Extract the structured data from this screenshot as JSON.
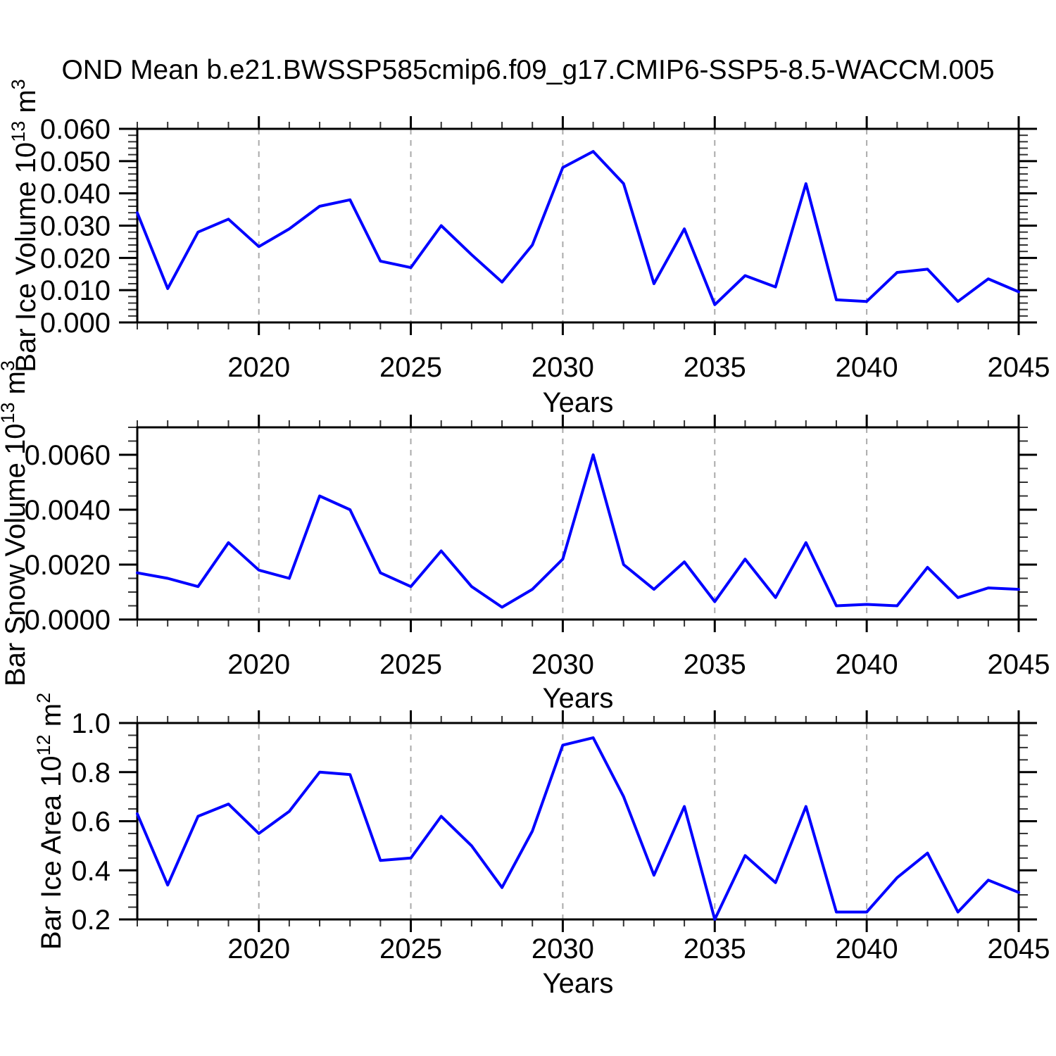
{
  "title": "OND Mean b.e21.BWSSP585cmip6.f09_g17.CMIP6-SSP5-8.5-WACCM.005",
  "colors": {
    "series": "#0000ff",
    "axis": "#000000",
    "grid": "#aaaaaa",
    "minor_tick": "#333333",
    "background": "#ffffff"
  },
  "chart_data": [
    {
      "type": "line",
      "name": "ice-volume",
      "title": "",
      "xlabel": "Years",
      "ylabel_parts": [
        {
          "t": "Bar Ice Volume 10",
          "sup": false
        },
        {
          "t": "13",
          "sup": true
        },
        {
          "t": " m",
          "sup": false
        },
        {
          "t": "3",
          "sup": true
        }
      ],
      "xlim": [
        2016,
        2045
      ],
      "ylim": [
        0.0,
        0.06
      ],
      "x_major_ticks": [
        2020,
        2025,
        2030,
        2035,
        2040,
        2045
      ],
      "x_major_labels": [
        "2020",
        "2025",
        "2030",
        "2035",
        "2040",
        "2045"
      ],
      "x_minor_step": 1,
      "y_major_ticks": [
        0.0,
        0.01,
        0.02,
        0.03,
        0.04,
        0.05,
        0.06
      ],
      "y_major_labels": [
        "0.000",
        "0.010",
        "0.020",
        "0.030",
        "0.040",
        "0.050",
        "0.060"
      ],
      "y_minor_step": 0.002,
      "grid_x": [
        2020,
        2025,
        2030,
        2035,
        2040
      ],
      "grid_on": true,
      "legend": "none",
      "x": [
        2016,
        2017,
        2018,
        2019,
        2020,
        2021,
        2022,
        2023,
        2024,
        2025,
        2026,
        2027,
        2028,
        2029,
        2030,
        2031,
        2032,
        2033,
        2034,
        2035,
        2036,
        2037,
        2038,
        2039,
        2040,
        2041,
        2042,
        2043,
        2044,
        2045
      ],
      "values": [
        0.034,
        0.0105,
        0.028,
        0.032,
        0.0235,
        0.029,
        0.036,
        0.038,
        0.019,
        0.017,
        0.03,
        0.021,
        0.0125,
        0.024,
        0.048,
        0.053,
        0.043,
        0.012,
        0.029,
        0.0055,
        0.0145,
        0.011,
        0.043,
        0.007,
        0.0065,
        0.0155,
        0.0165,
        0.0065,
        0.0135,
        0.0095
      ]
    },
    {
      "type": "line",
      "name": "snow-volume",
      "title": "",
      "xlabel": "Years",
      "ylabel_parts": [
        {
          "t": "Bar Snow Volume 10",
          "sup": false
        },
        {
          "t": "13",
          "sup": true
        },
        {
          "t": " m",
          "sup": false
        },
        {
          "t": "3",
          "sup": true
        }
      ],
      "xlim": [
        2016,
        2045
      ],
      "ylim": [
        0.0,
        0.007
      ],
      "x_major_ticks": [
        2020,
        2025,
        2030,
        2035,
        2040,
        2045
      ],
      "x_major_labels": [
        "2020",
        "2025",
        "2030",
        "2035",
        "2040",
        "2045"
      ],
      "x_minor_step": 1,
      "y_major_ticks": [
        0.0,
        0.002,
        0.004,
        0.006
      ],
      "y_major_labels": [
        "0.0000",
        "0.0020",
        "0.0040",
        "0.0060"
      ],
      "y_minor_step": 0.0005,
      "grid_x": [
        2020,
        2025,
        2030,
        2035,
        2040
      ],
      "grid_on": true,
      "legend": "none",
      "x": [
        2016,
        2017,
        2018,
        2019,
        2020,
        2021,
        2022,
        2023,
        2024,
        2025,
        2026,
        2027,
        2028,
        2029,
        2030,
        2031,
        2032,
        2033,
        2034,
        2035,
        2036,
        2037,
        2038,
        2039,
        2040,
        2041,
        2042,
        2043,
        2044,
        2045
      ],
      "values": [
        0.0017,
        0.0015,
        0.0012,
        0.0028,
        0.0018,
        0.0015,
        0.0045,
        0.004,
        0.0017,
        0.0012,
        0.0025,
        0.0012,
        0.00045,
        0.0011,
        0.0022,
        0.006,
        0.002,
        0.0011,
        0.0021,
        0.00065,
        0.0022,
        0.0008,
        0.0028,
        0.0005,
        0.00055,
        0.0005,
        0.0019,
        0.0008,
        0.00115,
        0.0011
      ]
    },
    {
      "type": "line",
      "name": "ice-area",
      "title": "",
      "xlabel": "Years",
      "ylabel_parts": [
        {
          "t": "Bar Ice Area 10",
          "sup": false
        },
        {
          "t": "12",
          "sup": true
        },
        {
          "t": " m",
          "sup": false
        },
        {
          "t": "2",
          "sup": true
        }
      ],
      "xlim": [
        2016,
        2045
      ],
      "ylim": [
        0.2,
        1.0
      ],
      "x_major_ticks": [
        2020,
        2025,
        2030,
        2035,
        2040,
        2045
      ],
      "x_major_labels": [
        "2020",
        "2025",
        "2030",
        "2035",
        "2040",
        "2045"
      ],
      "x_minor_step": 1,
      "y_major_ticks": [
        0.2,
        0.4,
        0.6,
        0.8,
        1.0
      ],
      "y_major_labels": [
        "0.2",
        "0.4",
        "0.6",
        "0.8",
        "1.0"
      ],
      "y_minor_step": 0.05,
      "grid_x": [
        2020,
        2025,
        2030,
        2035,
        2040
      ],
      "grid_on": true,
      "legend": "none",
      "x": [
        2016,
        2017,
        2018,
        2019,
        2020,
        2021,
        2022,
        2023,
        2024,
        2025,
        2026,
        2027,
        2028,
        2029,
        2030,
        2031,
        2032,
        2033,
        2034,
        2035,
        2036,
        2037,
        2038,
        2039,
        2040,
        2041,
        2042,
        2043,
        2044,
        2045
      ],
      "values": [
        0.63,
        0.34,
        0.62,
        0.67,
        0.55,
        0.64,
        0.8,
        0.79,
        0.44,
        0.45,
        0.62,
        0.5,
        0.33,
        0.56,
        0.91,
        0.94,
        0.7,
        0.38,
        0.66,
        0.2,
        0.46,
        0.35,
        0.66,
        0.23,
        0.23,
        0.37,
        0.47,
        0.23,
        0.36,
        0.31
      ]
    }
  ]
}
